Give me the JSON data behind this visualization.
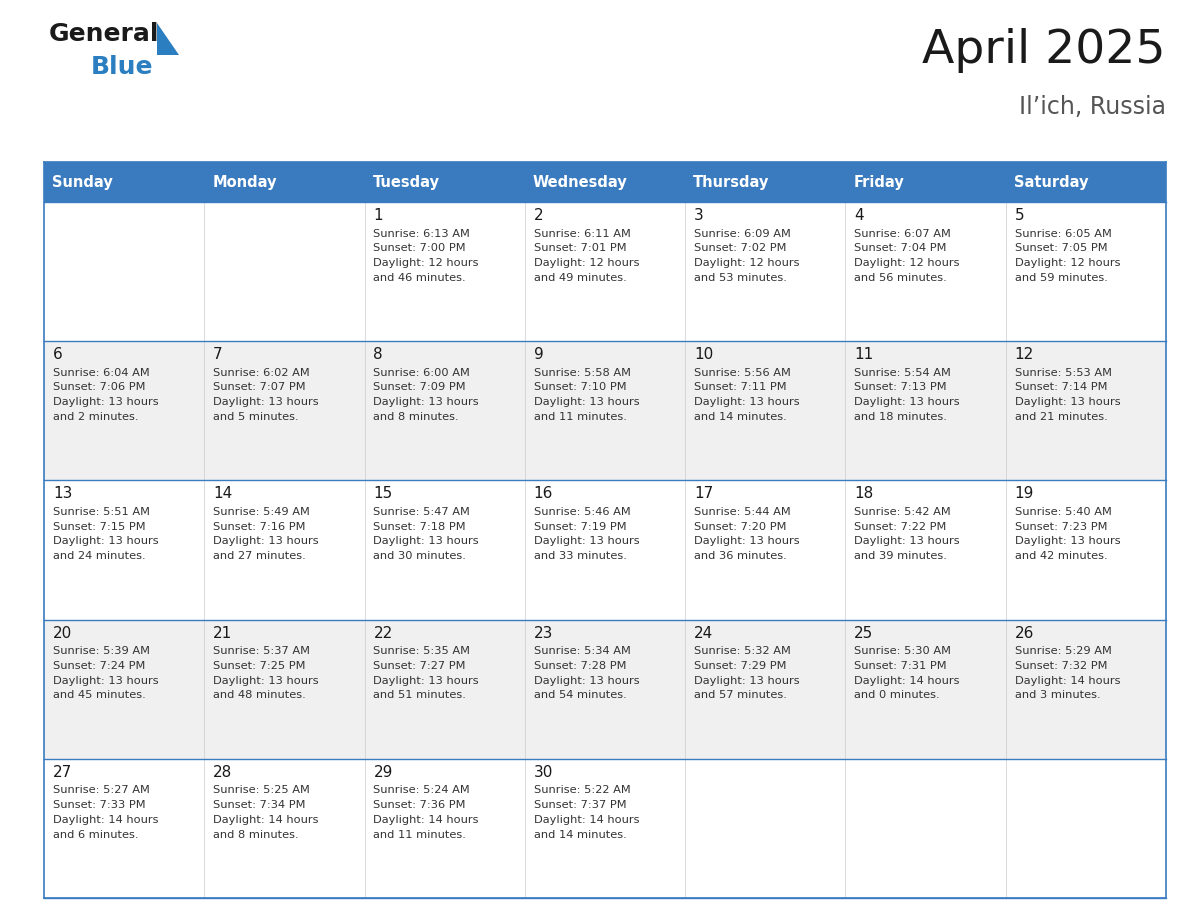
{
  "title": "April 2025",
  "subtitle": "Il’ich, Russia",
  "header_color": "#3a7bbf",
  "header_text_color": "#ffffff",
  "cell_bg_white": "#ffffff",
  "cell_bg_gray": "#f0f0f0",
  "border_color": "#3a7bbf",
  "row_divider_color": "#3a7bbf",
  "day_headers": [
    "Sunday",
    "Monday",
    "Tuesday",
    "Wednesday",
    "Thursday",
    "Friday",
    "Saturday"
  ],
  "days": [
    {
      "col": 0,
      "row": 0,
      "num": "",
      "sunrise": "",
      "sunset": "",
      "daylight": ""
    },
    {
      "col": 1,
      "row": 0,
      "num": "",
      "sunrise": "",
      "sunset": "",
      "daylight": ""
    },
    {
      "col": 2,
      "row": 0,
      "num": "1",
      "sunrise": "Sunrise: 6:13 AM",
      "sunset": "Sunset: 7:00 PM",
      "daylight": "Daylight: 12 hours\nand 46 minutes."
    },
    {
      "col": 3,
      "row": 0,
      "num": "2",
      "sunrise": "Sunrise: 6:11 AM",
      "sunset": "Sunset: 7:01 PM",
      "daylight": "Daylight: 12 hours\nand 49 minutes."
    },
    {
      "col": 4,
      "row": 0,
      "num": "3",
      "sunrise": "Sunrise: 6:09 AM",
      "sunset": "Sunset: 7:02 PM",
      "daylight": "Daylight: 12 hours\nand 53 minutes."
    },
    {
      "col": 5,
      "row": 0,
      "num": "4",
      "sunrise": "Sunrise: 6:07 AM",
      "sunset": "Sunset: 7:04 PM",
      "daylight": "Daylight: 12 hours\nand 56 minutes."
    },
    {
      "col": 6,
      "row": 0,
      "num": "5",
      "sunrise": "Sunrise: 6:05 AM",
      "sunset": "Sunset: 7:05 PM",
      "daylight": "Daylight: 12 hours\nand 59 minutes."
    },
    {
      "col": 0,
      "row": 1,
      "num": "6",
      "sunrise": "Sunrise: 6:04 AM",
      "sunset": "Sunset: 7:06 PM",
      "daylight": "Daylight: 13 hours\nand 2 minutes."
    },
    {
      "col": 1,
      "row": 1,
      "num": "7",
      "sunrise": "Sunrise: 6:02 AM",
      "sunset": "Sunset: 7:07 PM",
      "daylight": "Daylight: 13 hours\nand 5 minutes."
    },
    {
      "col": 2,
      "row": 1,
      "num": "8",
      "sunrise": "Sunrise: 6:00 AM",
      "sunset": "Sunset: 7:09 PM",
      "daylight": "Daylight: 13 hours\nand 8 minutes."
    },
    {
      "col": 3,
      "row": 1,
      "num": "9",
      "sunrise": "Sunrise: 5:58 AM",
      "sunset": "Sunset: 7:10 PM",
      "daylight": "Daylight: 13 hours\nand 11 minutes."
    },
    {
      "col": 4,
      "row": 1,
      "num": "10",
      "sunrise": "Sunrise: 5:56 AM",
      "sunset": "Sunset: 7:11 PM",
      "daylight": "Daylight: 13 hours\nand 14 minutes."
    },
    {
      "col": 5,
      "row": 1,
      "num": "11",
      "sunrise": "Sunrise: 5:54 AM",
      "sunset": "Sunset: 7:13 PM",
      "daylight": "Daylight: 13 hours\nand 18 minutes."
    },
    {
      "col": 6,
      "row": 1,
      "num": "12",
      "sunrise": "Sunrise: 5:53 AM",
      "sunset": "Sunset: 7:14 PM",
      "daylight": "Daylight: 13 hours\nand 21 minutes."
    },
    {
      "col": 0,
      "row": 2,
      "num": "13",
      "sunrise": "Sunrise: 5:51 AM",
      "sunset": "Sunset: 7:15 PM",
      "daylight": "Daylight: 13 hours\nand 24 minutes."
    },
    {
      "col": 1,
      "row": 2,
      "num": "14",
      "sunrise": "Sunrise: 5:49 AM",
      "sunset": "Sunset: 7:16 PM",
      "daylight": "Daylight: 13 hours\nand 27 minutes."
    },
    {
      "col": 2,
      "row": 2,
      "num": "15",
      "sunrise": "Sunrise: 5:47 AM",
      "sunset": "Sunset: 7:18 PM",
      "daylight": "Daylight: 13 hours\nand 30 minutes."
    },
    {
      "col": 3,
      "row": 2,
      "num": "16",
      "sunrise": "Sunrise: 5:46 AM",
      "sunset": "Sunset: 7:19 PM",
      "daylight": "Daylight: 13 hours\nand 33 minutes."
    },
    {
      "col": 4,
      "row": 2,
      "num": "17",
      "sunrise": "Sunrise: 5:44 AM",
      "sunset": "Sunset: 7:20 PM",
      "daylight": "Daylight: 13 hours\nand 36 minutes."
    },
    {
      "col": 5,
      "row": 2,
      "num": "18",
      "sunrise": "Sunrise: 5:42 AM",
      "sunset": "Sunset: 7:22 PM",
      "daylight": "Daylight: 13 hours\nand 39 minutes."
    },
    {
      "col": 6,
      "row": 2,
      "num": "19",
      "sunrise": "Sunrise: 5:40 AM",
      "sunset": "Sunset: 7:23 PM",
      "daylight": "Daylight: 13 hours\nand 42 minutes."
    },
    {
      "col": 0,
      "row": 3,
      "num": "20",
      "sunrise": "Sunrise: 5:39 AM",
      "sunset": "Sunset: 7:24 PM",
      "daylight": "Daylight: 13 hours\nand 45 minutes."
    },
    {
      "col": 1,
      "row": 3,
      "num": "21",
      "sunrise": "Sunrise: 5:37 AM",
      "sunset": "Sunset: 7:25 PM",
      "daylight": "Daylight: 13 hours\nand 48 minutes."
    },
    {
      "col": 2,
      "row": 3,
      "num": "22",
      "sunrise": "Sunrise: 5:35 AM",
      "sunset": "Sunset: 7:27 PM",
      "daylight": "Daylight: 13 hours\nand 51 minutes."
    },
    {
      "col": 3,
      "row": 3,
      "num": "23",
      "sunrise": "Sunrise: 5:34 AM",
      "sunset": "Sunset: 7:28 PM",
      "daylight": "Daylight: 13 hours\nand 54 minutes."
    },
    {
      "col": 4,
      "row": 3,
      "num": "24",
      "sunrise": "Sunrise: 5:32 AM",
      "sunset": "Sunset: 7:29 PM",
      "daylight": "Daylight: 13 hours\nand 57 minutes."
    },
    {
      "col": 5,
      "row": 3,
      "num": "25",
      "sunrise": "Sunrise: 5:30 AM",
      "sunset": "Sunset: 7:31 PM",
      "daylight": "Daylight: 14 hours\nand 0 minutes."
    },
    {
      "col": 6,
      "row": 3,
      "num": "26",
      "sunrise": "Sunrise: 5:29 AM",
      "sunset": "Sunset: 7:32 PM",
      "daylight": "Daylight: 14 hours\nand 3 minutes."
    },
    {
      "col": 0,
      "row": 4,
      "num": "27",
      "sunrise": "Sunrise: 5:27 AM",
      "sunset": "Sunset: 7:33 PM",
      "daylight": "Daylight: 14 hours\nand 6 minutes."
    },
    {
      "col": 1,
      "row": 4,
      "num": "28",
      "sunrise": "Sunrise: 5:25 AM",
      "sunset": "Sunset: 7:34 PM",
      "daylight": "Daylight: 14 hours\nand 8 minutes."
    },
    {
      "col": 2,
      "row": 4,
      "num": "29",
      "sunrise": "Sunrise: 5:24 AM",
      "sunset": "Sunset: 7:36 PM",
      "daylight": "Daylight: 14 hours\nand 11 minutes."
    },
    {
      "col": 3,
      "row": 4,
      "num": "30",
      "sunrise": "Sunrise: 5:22 AM",
      "sunset": "Sunset: 7:37 PM",
      "daylight": "Daylight: 14 hours\nand 14 minutes."
    },
    {
      "col": 4,
      "row": 4,
      "num": "",
      "sunrise": "",
      "sunset": "",
      "daylight": ""
    },
    {
      "col": 5,
      "row": 4,
      "num": "",
      "sunrise": "",
      "sunset": "",
      "daylight": ""
    },
    {
      "col": 6,
      "row": 4,
      "num": "",
      "sunrise": "",
      "sunset": "",
      "daylight": ""
    }
  ],
  "num_rows": 5,
  "num_cols": 7,
  "logo_text_general": "General",
  "logo_text_blue": "Blue",
  "logo_color_general": "#1a1a1a",
  "logo_color_blue": "#2b7fc1",
  "logo_triangle_color": "#2b7fc1"
}
